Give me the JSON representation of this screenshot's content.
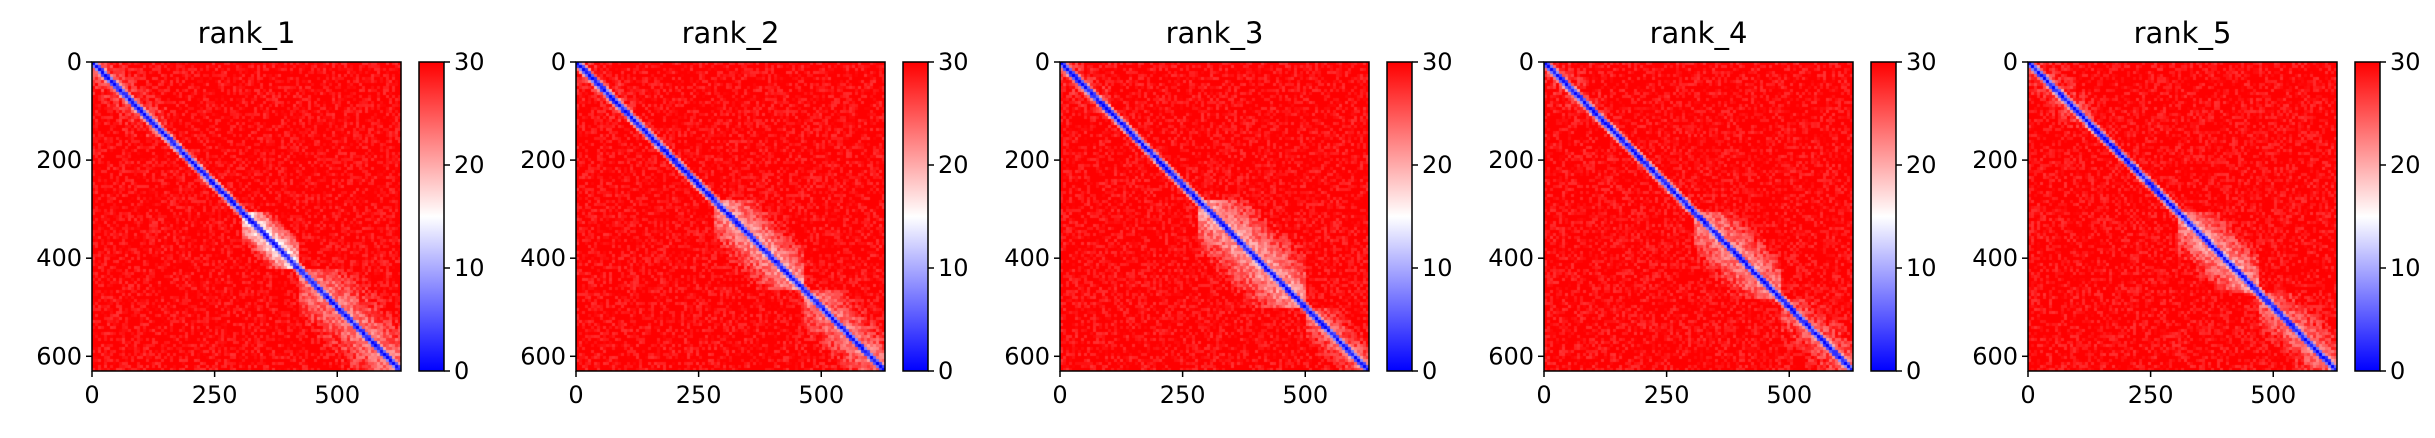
{
  "chart_data": [
    {
      "type": "heatmap",
      "title": "rank_1",
      "matrix_size": 630,
      "x_ticks": [
        0,
        250,
        500
      ],
      "y_ticks": [
        0,
        200,
        400,
        600
      ],
      "colorbar": {
        "colormap": "bwr",
        "range": [
          0,
          30
        ],
        "ticks": [
          0,
          10,
          20,
          30
        ]
      },
      "background_value": 30,
      "diagonal_value": 0,
      "domains": [
        {
          "from": 300,
          "to": 420,
          "value": 14
        },
        {
          "from": 420,
          "to": 630,
          "value": 22
        },
        {
          "from": 0,
          "to": 150,
          "value": 26
        }
      ]
    },
    {
      "type": "heatmap",
      "title": "rank_2",
      "matrix_size": 630,
      "x_ticks": [
        0,
        250,
        500
      ],
      "y_ticks": [
        0,
        200,
        400,
        600
      ],
      "colorbar": {
        "colormap": "bwr",
        "range": [
          0,
          30
        ],
        "ticks": [
          0,
          10,
          20,
          30
        ]
      },
      "background_value": 30,
      "diagonal_value": 0,
      "domains": [
        {
          "from": 280,
          "to": 460,
          "value": 20
        },
        {
          "from": 460,
          "to": 630,
          "value": 22
        },
        {
          "from": 0,
          "to": 120,
          "value": 27
        }
      ]
    },
    {
      "type": "heatmap",
      "title": "rank_3",
      "matrix_size": 630,
      "x_ticks": [
        0,
        250,
        500
      ],
      "y_ticks": [
        0,
        200,
        400,
        600
      ],
      "colorbar": {
        "colormap": "bwr",
        "range": [
          0,
          30
        ],
        "ticks": [
          0,
          10,
          20,
          30
        ]
      },
      "background_value": 30,
      "diagonal_value": 0,
      "domains": [
        {
          "from": 280,
          "to": 500,
          "value": 20
        },
        {
          "from": 500,
          "to": 630,
          "value": 23
        },
        {
          "from": 0,
          "to": 100,
          "value": 26
        }
      ]
    },
    {
      "type": "heatmap",
      "title": "rank_4",
      "matrix_size": 630,
      "x_ticks": [
        0,
        250,
        500
      ],
      "y_ticks": [
        0,
        200,
        400,
        600
      ],
      "colorbar": {
        "colormap": "bwr",
        "range": [
          0,
          30
        ],
        "ticks": [
          0,
          10,
          20,
          30
        ]
      },
      "background_value": 30,
      "diagonal_value": 0,
      "domains": [
        {
          "from": 300,
          "to": 480,
          "value": 21
        },
        {
          "from": 480,
          "to": 630,
          "value": 24
        },
        {
          "from": 0,
          "to": 120,
          "value": 27
        }
      ]
    },
    {
      "type": "heatmap",
      "title": "rank_5",
      "matrix_size": 630,
      "x_ticks": [
        0,
        250,
        500
      ],
      "y_ticks": [
        0,
        200,
        400,
        600
      ],
      "colorbar": {
        "colormap": "bwr",
        "range": [
          0,
          30
        ],
        "ticks": [
          0,
          10,
          20,
          30
        ]
      },
      "background_value": 30,
      "diagonal_value": 0,
      "domains": [
        {
          "from": 300,
          "to": 470,
          "value": 20
        },
        {
          "from": 470,
          "to": 630,
          "value": 23
        },
        {
          "from": 0,
          "to": 130,
          "value": 26
        }
      ]
    }
  ]
}
